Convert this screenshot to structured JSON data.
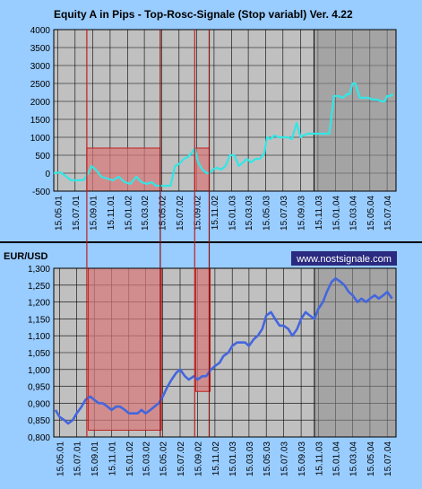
{
  "colors": {
    "page_bg": "#99ccff",
    "plot_bg": "#c0c0c0",
    "grid": "#000000",
    "equity_line": "#33e6e6",
    "price_line": "#4466dd",
    "loss_zone_fill": "#d87878",
    "loss_zone_stroke": "#c02020",
    "out_of_sample_fill": "#8c8c8c",
    "watermark_bg": "#2a2a80",
    "watermark_text": "#ffffff"
  },
  "watermark": "www.nostsignale.com",
  "chart_data": [
    {
      "type": "line",
      "title": "Equity A in Pips - Top-Rosc-Signale (Stop variabl) Ver. 4.22",
      "xlabel": "",
      "ylabel": "",
      "ylim": [
        -500,
        4000
      ],
      "yticks": [
        -500,
        0,
        500,
        1000,
        1500,
        2000,
        2500,
        3000,
        3500,
        4000
      ],
      "ytick_labels": [
        "-500",
        "0",
        "500",
        "1000",
        "1500",
        "2000",
        "2500",
        "3000",
        "3500",
        "4000"
      ],
      "xlim": [
        "2001-05-01",
        "2004-08-15"
      ],
      "x_tick_labels": [
        "15.05.01",
        "15.07.01",
        "15.09.01",
        "15.11.01",
        "15.01.02",
        "15.03.02",
        "15.05.02",
        "15.07.02",
        "15.09.02",
        "15.11.02",
        "15.01.03",
        "15.03.03",
        "15.05.03",
        "15.07.03",
        "15.09.03",
        "15.11.03",
        "15.01.04",
        "15.03.04",
        "15.05.04",
        "15.07.04"
      ],
      "grid": true,
      "shaded_regions": [
        {
          "kind": "loss_zone",
          "x": [
            "2001-08-25",
            "2002-05-10"
          ],
          "y": [
            -500,
            700
          ]
        },
        {
          "kind": "loss_zone",
          "x": [
            "2002-09-08",
            "2002-10-29"
          ],
          "y": [
            -500,
            700
          ]
        },
        {
          "kind": "out_of_sample",
          "x": [
            "2003-11-01",
            "2004-08-15"
          ],
          "y": [
            -500,
            4000
          ]
        }
      ],
      "series": [
        {
          "x": [
            "2001-05-01",
            "2001-05-25",
            "2001-06-15",
            "2001-07-01",
            "2001-07-20",
            "2001-08-15",
            "2001-08-30",
            "2001-09-10",
            "2001-09-25",
            "2001-10-15",
            "2001-11-05",
            "2001-11-25",
            "2001-12-15",
            "2002-01-05",
            "2002-01-25",
            "2002-02-15",
            "2002-03-05",
            "2002-03-25",
            "2002-04-10",
            "2002-04-25",
            "2002-05-10",
            "2002-05-20",
            "2002-06-01",
            "2002-06-15",
            "2002-07-01",
            "2002-07-15",
            "2002-08-01",
            "2002-08-15",
            "2002-09-01",
            "2002-09-08",
            "2002-09-20",
            "2002-10-05",
            "2002-10-20",
            "2002-10-29",
            "2002-11-10",
            "2002-11-25",
            "2002-12-10",
            "2002-12-25",
            "2003-01-10",
            "2003-01-25",
            "2003-02-10",
            "2003-02-25",
            "2003-03-10",
            "2003-03-25",
            "2003-04-10",
            "2003-04-25",
            "2003-05-10",
            "2003-05-20",
            "2003-06-01",
            "2003-06-15",
            "2003-07-01",
            "2003-07-15",
            "2003-08-01",
            "2003-08-15",
            "2003-09-01",
            "2003-09-15",
            "2003-09-25",
            "2003-10-10",
            "2003-10-25",
            "2003-11-10",
            "2003-11-25",
            "2003-12-10",
            "2003-12-25",
            "2004-01-10",
            "2004-01-25",
            "2004-02-10",
            "2004-02-25",
            "2004-03-05",
            "2004-03-15",
            "2004-03-25",
            "2004-04-10",
            "2004-04-25",
            "2004-05-10",
            "2004-05-25",
            "2004-06-10",
            "2004-06-25",
            "2004-07-05",
            "2004-07-15",
            "2004-07-25",
            "2004-08-05"
          ],
          "values": [
            0,
            20,
            -100,
            -200,
            -200,
            -190,
            0,
            200,
            100,
            -100,
            -150,
            -200,
            -100,
            -250,
            -300,
            -100,
            -250,
            -300,
            -250,
            -350,
            -350,
            -350,
            -350,
            -350,
            200,
            250,
            400,
            450,
            600,
            700,
            300,
            100,
            0,
            0,
            100,
            150,
            100,
            200,
            500,
            500,
            200,
            300,
            400,
            300,
            400,
            400,
            550,
            1000,
            950,
            1050,
            1000,
            1000,
            1000,
            950,
            1400,
            1000,
            1050,
            1100,
            1100,
            1100,
            1100,
            1100,
            1100,
            2150,
            2150,
            2100,
            2200,
            2200,
            2500,
            2500,
            2100,
            2100,
            2100,
            2050,
            2050,
            2000,
            2000,
            2150,
            2150,
            2200
          ]
        }
      ]
    },
    {
      "type": "line",
      "title": "EUR/USD",
      "xlabel": "",
      "ylabel": "",
      "ylim": [
        0.8,
        1.3
      ],
      "yticks": [
        0.8,
        0.85,
        0.9,
        0.95,
        1.0,
        1.05,
        1.1,
        1.15,
        1.2,
        1.25,
        1.3
      ],
      "ytick_labels": [
        "0,800",
        "0,850",
        "0,900",
        "0,950",
        "1,000",
        "1,050",
        "1,100",
        "1,150",
        "1,200",
        "1,250",
        "1,300"
      ],
      "xlim": [
        "2001-04-25",
        "2004-08-15"
      ],
      "x_tick_labels": [
        "15.05.01",
        "15.07.01",
        "15.09.01",
        "15.11.01",
        "15.01.02",
        "15.03.02",
        "15.05.02",
        "15.07.02",
        "15.09.02",
        "15.11.02",
        "15.01.03",
        "15.03.03",
        "15.05.03",
        "15.07.03",
        "15.09.03",
        "15.11.03",
        "15.01.04",
        "15.03.04",
        "15.05.04",
        "15.07.04"
      ],
      "grid": true,
      "shaded_regions": [
        {
          "kind": "loss_zone",
          "x": [
            "2001-08-25",
            "2002-05-10"
          ],
          "y": [
            0.82,
            1.3
          ]
        },
        {
          "kind": "loss_zone",
          "x": [
            "2002-09-08",
            "2002-10-29"
          ],
          "y": [
            0.935,
            1.3
          ]
        },
        {
          "kind": "out_of_sample",
          "x": [
            "2003-11-01",
            "2004-08-15"
          ],
          "y": [
            0.8,
            1.3
          ]
        }
      ],
      "series": [
        {
          "x": [
            "2001-05-01",
            "2001-05-15",
            "2001-06-01",
            "2001-06-15",
            "2001-07-01",
            "2001-07-15",
            "2001-08-01",
            "2001-08-15",
            "2001-09-01",
            "2001-09-15",
            "2001-10-01",
            "2001-10-15",
            "2001-11-01",
            "2001-11-15",
            "2001-12-01",
            "2001-12-15",
            "2002-01-01",
            "2002-01-15",
            "2002-02-01",
            "2002-02-15",
            "2002-03-01",
            "2002-03-15",
            "2002-04-01",
            "2002-04-15",
            "2002-05-01",
            "2002-05-15",
            "2002-06-01",
            "2002-06-15",
            "2002-07-01",
            "2002-07-15",
            "2002-08-01",
            "2002-08-15",
            "2002-09-01",
            "2002-09-15",
            "2002-10-01",
            "2002-10-15",
            "2002-11-01",
            "2002-11-15",
            "2002-12-01",
            "2002-12-15",
            "2003-01-01",
            "2003-01-15",
            "2003-02-01",
            "2003-02-15",
            "2003-03-01",
            "2003-03-15",
            "2003-04-01",
            "2003-04-15",
            "2003-05-01",
            "2003-05-15",
            "2003-06-01",
            "2003-06-15",
            "2003-07-01",
            "2003-07-15",
            "2003-08-01",
            "2003-08-15",
            "2003-09-01",
            "2003-09-15",
            "2003-10-01",
            "2003-10-15",
            "2003-11-01",
            "2003-11-15",
            "2003-12-01",
            "2003-12-15",
            "2004-01-01",
            "2004-01-15",
            "2004-02-01",
            "2004-02-15",
            "2004-03-01",
            "2004-03-15",
            "2004-04-01",
            "2004-04-15",
            "2004-05-01",
            "2004-05-15",
            "2004-06-01",
            "2004-06-15",
            "2004-07-01",
            "2004-07-15",
            "2004-08-01"
          ],
          "values": [
            0.88,
            0.86,
            0.85,
            0.84,
            0.85,
            0.87,
            0.89,
            0.91,
            0.92,
            0.91,
            0.9,
            0.9,
            0.89,
            0.88,
            0.89,
            0.89,
            0.88,
            0.87,
            0.87,
            0.87,
            0.88,
            0.87,
            0.88,
            0.89,
            0.9,
            0.92,
            0.95,
            0.97,
            0.99,
            1.0,
            0.98,
            0.97,
            0.98,
            0.97,
            0.98,
            0.98,
            1.0,
            1.01,
            1.02,
            1.04,
            1.05,
            1.07,
            1.08,
            1.08,
            1.08,
            1.07,
            1.09,
            1.1,
            1.12,
            1.16,
            1.17,
            1.15,
            1.13,
            1.13,
            1.12,
            1.1,
            1.12,
            1.15,
            1.17,
            1.16,
            1.15,
            1.18,
            1.2,
            1.23,
            1.26,
            1.27,
            1.26,
            1.25,
            1.23,
            1.22,
            1.2,
            1.21,
            1.2,
            1.21,
            1.22,
            1.21,
            1.22,
            1.23,
            1.21
          ]
        }
      ]
    }
  ]
}
